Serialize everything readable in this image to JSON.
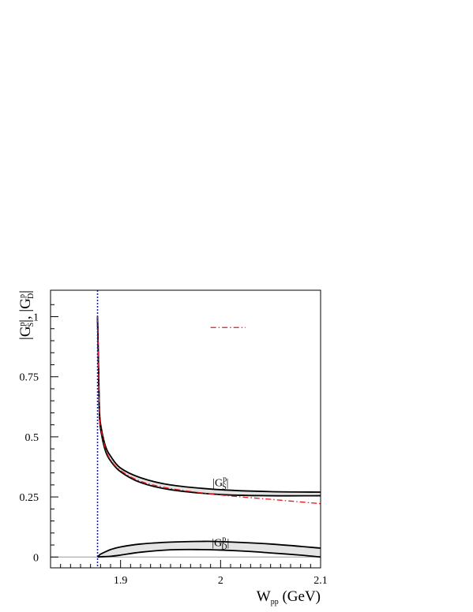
{
  "chart_data": {
    "type": "area",
    "title": "",
    "xlabel": "W",
    "xlabel_sub": "pp",
    "xlabel_unit": " (GeV)",
    "ylabel_parts": [
      "|G",
      "|, |G",
      "|"
    ],
    "ylabel_sup": "p",
    "ylabel_subs": [
      "S",
      "D"
    ],
    "xlim": [
      1.83,
      2.1
    ],
    "ylim": [
      -0.045,
      1.11
    ],
    "x_ticks": [
      1.9,
      2.0,
      2.1
    ],
    "x_tick_labels": [
      "1.9",
      "2",
      "2.1"
    ],
    "y_ticks": [
      0,
      0.25,
      0.5,
      0.75,
      1
    ],
    "y_tick_labels": [
      "0",
      "0.25",
      "0.5",
      "0.75",
      "1"
    ],
    "grid": false,
    "threshold_x": 1.877,
    "zero_line": true,
    "series": [
      {
        "name": "|G_S^p|",
        "label_main": "|G",
        "label_sup": "p",
        "label_sub": "S",
        "label_end": "|",
        "label_x": 2.0,
        "label_y": 0.295,
        "upper": {
          "x": [
            1.877,
            1.878,
            1.879,
            1.881,
            1.885,
            1.89,
            1.9,
            1.92,
            1.95,
            2.0,
            2.05,
            2.1
          ],
          "y": [
            1.0,
            0.79,
            0.6,
            0.53,
            0.46,
            0.42,
            0.37,
            0.33,
            0.3,
            0.28,
            0.272,
            0.27
          ]
        },
        "lower": {
          "x": [
            1.877,
            1.878,
            1.879,
            1.881,
            1.885,
            1.89,
            1.9,
            1.92,
            1.95,
            2.0,
            2.05,
            2.1
          ],
          "y": [
            1.0,
            0.78,
            0.58,
            0.51,
            0.44,
            0.4,
            0.355,
            0.31,
            0.28,
            0.26,
            0.255,
            0.255
          ]
        }
      },
      {
        "name": "|G_D^p|",
        "label_main": "|G",
        "label_sup": "p",
        "label_sub": "D",
        "label_end": "|",
        "label_x": 2.0,
        "label_y": 0.045,
        "upper": {
          "x": [
            1.877,
            1.878,
            1.88,
            1.885,
            1.89,
            1.9,
            1.92,
            1.95,
            1.98,
            2.0,
            2.05,
            2.1
          ],
          "y": [
            0.0,
            0.004,
            0.012,
            0.022,
            0.031,
            0.042,
            0.054,
            0.062,
            0.065,
            0.064,
            0.054,
            0.037
          ]
        },
        "lower": {
          "x": [
            1.877,
            1.88,
            1.89,
            1.9,
            1.92,
            1.95,
            1.98,
            2.0,
            2.03,
            2.05,
            2.08,
            2.1
          ],
          "y": [
            0.0,
            0.001,
            0.003,
            0.008,
            0.02,
            0.03,
            0.031,
            0.029,
            0.023,
            0.017,
            0.008,
            0.0
          ]
        }
      },
      {
        "name": "dash-dot",
        "style": "dash-dot",
        "color": "#e8191c",
        "x": [
          1.877,
          1.878,
          1.879,
          1.881,
          1.885,
          1.89,
          1.9,
          1.92,
          1.95,
          2.0,
          2.05,
          2.1
        ],
        "y": [
          1.0,
          0.78,
          0.59,
          0.52,
          0.45,
          0.405,
          0.36,
          0.315,
          0.285,
          0.258,
          0.24,
          0.222
        ],
        "legend_segment_x": [
          1.99,
          2.025
        ],
        "legend_segment_y": 0.955
      }
    ],
    "colors": {
      "band_fill": "#e4e4e4",
      "band_edge": "#000000",
      "threshold": "#1a1ad6",
      "dash_dot": "#e8191c",
      "frame": "#000000",
      "zero_line": "#9a9a9a"
    }
  }
}
